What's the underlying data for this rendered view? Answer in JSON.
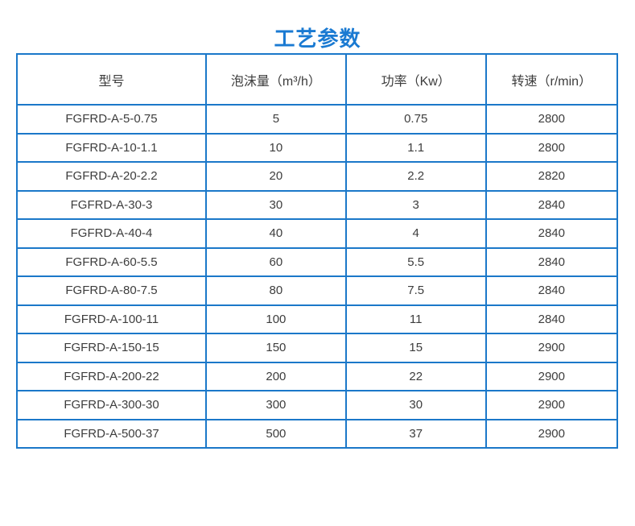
{
  "theme": {
    "accent_blue": "#1a7ad2",
    "table_border_blue": "#1b78c9",
    "text_color": "#3d3d3d",
    "background": "#ffffff"
  },
  "title": {
    "text": "工艺参数"
  },
  "table": {
    "headers": [
      "型号",
      "泡沫量（m³/h）",
      "功率（Kw）",
      "转速（r/min）"
    ],
    "rows": [
      {
        "model": "FGFRD-A-5-0.75",
        "foam": "5",
        "power": "0.75",
        "speed": "2800"
      },
      {
        "model": "FGFRD-A-10-1.1",
        "foam": "10",
        "power": "1.1",
        "speed": "2800"
      },
      {
        "model": "FGFRD-A-20-2.2",
        "foam": "20",
        "power": "2.2",
        "speed": "2820"
      },
      {
        "model": "FGFRD-A-30-3",
        "foam": "30",
        "power": "3",
        "speed": "2840"
      },
      {
        "model": "FGFRD-A-40-4",
        "foam": "40",
        "power": "4",
        "speed": "2840"
      },
      {
        "model": "FGFRD-A-60-5.5",
        "foam": "60",
        "power": "5.5",
        "speed": "2840"
      },
      {
        "model": "FGFRD-A-80-7.5",
        "foam": "80",
        "power": "7.5",
        "speed": "2840"
      },
      {
        "model": "FGFRD-A-100-11",
        "foam": "100",
        "power": "11",
        "speed": "2840"
      },
      {
        "model": "FGFRD-A-150-15",
        "foam": "150",
        "power": "15",
        "speed": "2900"
      },
      {
        "model": "FGFRD-A-200-22",
        "foam": "200",
        "power": "22",
        "speed": "2900"
      },
      {
        "model": "FGFRD-A-300-30",
        "foam": "300",
        "power": "30",
        "speed": "2900"
      },
      {
        "model": "FGFRD-A-500-37",
        "foam": "500",
        "power": "37",
        "speed": "2900"
      }
    ]
  }
}
